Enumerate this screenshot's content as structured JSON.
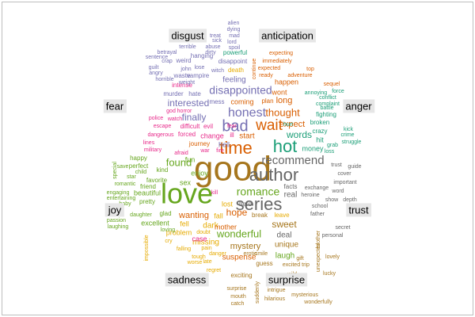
{
  "chart_data": {
    "type": "wordcloud",
    "categories": [
      "anger",
      "anticipation",
      "disgust",
      "fear",
      "joy",
      "sadness",
      "surprise",
      "trust"
    ],
    "colors": {
      "anger": "#1b9e77",
      "anticipation": "#d95f02",
      "disgust": "#7570b3",
      "fear": "#e7298a",
      "joy": "#66a61e",
      "sadness": "#e6ab02",
      "surprise": "#a6761d",
      "trust": "#666666"
    },
    "words": [
      {
        "text": "good",
        "category": "surprise",
        "size": 44
      },
      {
        "text": "love",
        "category": "joy",
        "size": 36
      },
      {
        "text": "series",
        "category": "trust",
        "size": 22
      },
      {
        "text": "author",
        "category": "trust",
        "size": 22
      },
      {
        "text": "time",
        "category": "anticipation",
        "size": 22
      },
      {
        "text": "hot",
        "category": "anger",
        "size": 22
      },
      {
        "text": "bad",
        "category": "disgust",
        "size": 20
      },
      {
        "text": "wait",
        "category": "anticipation",
        "size": 19
      },
      {
        "text": "honest",
        "category": "disgust",
        "size": 16
      },
      {
        "text": "recommend",
        "category": "trust",
        "size": 15
      },
      {
        "text": "romance",
        "category": "joy",
        "size": 14
      },
      {
        "text": "disappointed",
        "category": "disgust",
        "size": 14
      },
      {
        "text": "thought",
        "category": "anticipation",
        "size": 13
      },
      {
        "text": "wonderful",
        "category": "joy",
        "size": 13
      },
      {
        "text": "found",
        "category": "joy",
        "size": 13
      },
      {
        "text": "interested",
        "category": "disgust",
        "size": 12
      },
      {
        "text": "finally",
        "category": "disgust",
        "size": 12
      },
      {
        "text": "words",
        "category": "anger",
        "size": 12
      },
      {
        "text": "hope",
        "category": "anticipation",
        "size": 12
      },
      {
        "text": "sweet",
        "category": "surprise",
        "size": 12
      },
      {
        "text": "mystery",
        "category": "surprise",
        "size": 11
      },
      {
        "text": "wanting",
        "category": "anticipation",
        "size": 11
      },
      {
        "text": "expect",
        "category": "anticipation",
        "size": 11
      },
      {
        "text": "long",
        "category": "anticipation",
        "size": 11
      },
      {
        "text": "unique",
        "category": "surprise",
        "size": 10
      },
      {
        "text": "dark",
        "category": "sadness",
        "size": 10
      },
      {
        "text": "feeling",
        "category": "disgust",
        "size": 10
      },
      {
        "text": "start",
        "category": "anticipation",
        "size": 10
      },
      {
        "text": "real",
        "category": "trust",
        "size": 10
      },
      {
        "text": "suspense",
        "category": "anticipation",
        "size": 10
      },
      {
        "text": "laugh",
        "category": "joy",
        "size": 10
      },
      {
        "text": "deal",
        "category": "trust",
        "size": 10
      },
      {
        "text": "missing",
        "category": "sadness",
        "size": 10
      },
      {
        "text": "problem",
        "category": "sadness",
        "size": 9
      },
      {
        "text": "excellent",
        "category": "joy",
        "size": 9
      },
      {
        "text": "beautiful",
        "category": "joy",
        "size": 9
      },
      {
        "text": "enjoy",
        "category": "joy",
        "size": 9
      },
      {
        "text": "fun",
        "category": "joy",
        "size": 9
      },
      {
        "text": "sex",
        "category": "joy",
        "size": 9
      },
      {
        "text": "happen",
        "category": "anticipation",
        "size": 9
      },
      {
        "text": "coming",
        "category": "anticipation",
        "size": 9
      },
      {
        "text": "change",
        "category": "fear",
        "size": 9
      },
      {
        "text": "hell",
        "category": "disgust",
        "size": 9
      },
      {
        "text": "wont",
        "category": "anticipation",
        "size": 9
      },
      {
        "text": "hit",
        "category": "anger",
        "size": 9
      },
      {
        "text": "money",
        "category": "anger",
        "size": 9
      },
      {
        "text": "fall",
        "category": "sadness",
        "size": 9
      },
      {
        "text": "lost",
        "category": "sadness",
        "size": 9
      },
      {
        "text": "mother",
        "category": "anticipation",
        "size": 9
      },
      {
        "text": "case",
        "category": "fear",
        "size": 9
      },
      {
        "text": "fell",
        "category": "sadness",
        "size": 9
      },
      {
        "text": "favorite",
        "category": "joy",
        "size": 8
      },
      {
        "text": "friend",
        "category": "joy",
        "size": 8
      },
      {
        "text": "happy",
        "category": "joy",
        "size": 8
      },
      {
        "text": "kind",
        "category": "joy",
        "size": 8
      },
      {
        "text": "glad",
        "category": "joy",
        "size": 8
      },
      {
        "text": "pretty",
        "category": "joy",
        "size": 8
      },
      {
        "text": "perfect",
        "category": "joy",
        "size": 8
      },
      {
        "text": "hero",
        "category": "trust",
        "size": 8
      },
      {
        "text": "break",
        "category": "surprise",
        "size": 8
      },
      {
        "text": "leave",
        "category": "sadness",
        "size": 8
      },
      {
        "text": "facts",
        "category": "trust",
        "size": 8
      },
      {
        "text": "ill",
        "category": "fear",
        "size": 8
      },
      {
        "text": "hate",
        "category": "disgust",
        "size": 8
      },
      {
        "text": "mess",
        "category": "disgust",
        "size": 8
      },
      {
        "text": "plan",
        "category": "anticipation",
        "size": 8
      },
      {
        "text": "intense",
        "category": "fear",
        "size": 8
      },
      {
        "text": "murder",
        "category": "disgust",
        "size": 8
      },
      {
        "text": "vampire",
        "category": "disgust",
        "size": 8
      },
      {
        "text": "waste",
        "category": "disgust",
        "size": 8
      },
      {
        "text": "weird",
        "category": "disgust",
        "size": 8
      },
      {
        "text": "disappoint",
        "category": "disgust",
        "size": 8
      },
      {
        "text": "death",
        "category": "sadness",
        "size": 8
      },
      {
        "text": "powerful",
        "category": "anger",
        "size": 8
      },
      {
        "text": "hanging",
        "category": "disgust",
        "size": 8
      },
      {
        "text": "journey",
        "category": "anticipation",
        "size": 8
      },
      {
        "text": "difficult",
        "category": "fear",
        "size": 8
      },
      {
        "text": "evil",
        "category": "fear",
        "size": 8
      },
      {
        "text": "forced",
        "category": "fear",
        "size": 8
      },
      {
        "text": "crazy",
        "category": "anger",
        "size": 8
      },
      {
        "text": "broken",
        "category": "anger",
        "size": 8
      },
      {
        "text": "fighting",
        "category": "anger",
        "size": 8
      },
      {
        "text": "grab",
        "category": "anger",
        "size": 7
      },
      {
        "text": "loss",
        "category": "anger",
        "size": 7
      },
      {
        "text": "lines",
        "category": "fear",
        "size": 7
      },
      {
        "text": "war",
        "category": "fear",
        "size": 7
      },
      {
        "text": "fire",
        "category": "fear",
        "size": 7
      },
      {
        "text": "afraid",
        "category": "fear",
        "size": 7
      },
      {
        "text": "military",
        "category": "fear",
        "size": 7
      },
      {
        "text": "escape",
        "category": "fear",
        "size": 7
      },
      {
        "text": "dangerous",
        "category": "fear",
        "size": 7
      },
      {
        "text": "police",
        "category": "fear",
        "size": 7
      },
      {
        "text": "watch",
        "category": "fear",
        "size": 7
      },
      {
        "text": "god",
        "category": "fear",
        "size": 7
      },
      {
        "text": "horror",
        "category": "fear",
        "size": 7
      },
      {
        "text": "kill",
        "category": "fear",
        "size": 7
      },
      {
        "text": "fear",
        "category": "fear",
        "size": 7
      },
      {
        "text": "exchange",
        "category": "trust",
        "size": 7
      },
      {
        "text": "heroine",
        "category": "trust",
        "size": 7
      },
      {
        "text": "word",
        "category": "trust",
        "size": 7
      },
      {
        "text": "show",
        "category": "trust",
        "size": 7
      },
      {
        "text": "depth",
        "category": "trust",
        "size": 7
      },
      {
        "text": "school",
        "category": "trust",
        "size": 7
      },
      {
        "text": "father",
        "category": "trust",
        "size": 7
      },
      {
        "text": "personal",
        "category": "trust",
        "size": 7
      },
      {
        "text": "important",
        "category": "trust",
        "size": 7
      },
      {
        "text": "cover",
        "category": "trust",
        "size": 7
      },
      {
        "text": "guide",
        "category": "trust",
        "size": 7
      },
      {
        "text": "trust",
        "category": "trust",
        "size": 7
      },
      {
        "text": "secret",
        "category": "trust",
        "size": 7
      },
      {
        "text": "struggle",
        "category": "anger",
        "size": 7
      },
      {
        "text": "kick",
        "category": "anger",
        "size": 7
      },
      {
        "text": "crime",
        "category": "anger",
        "size": 7
      },
      {
        "text": "battle",
        "category": "anger",
        "size": 7
      },
      {
        "text": "hurt",
        "category": "anger",
        "size": 7
      },
      {
        "text": "annoying",
        "category": "anger",
        "size": 7
      },
      {
        "text": "conflict",
        "category": "anger",
        "size": 7
      },
      {
        "text": "complaint",
        "category": "anger",
        "size": 7
      },
      {
        "text": "force",
        "category": "anger",
        "size": 7
      },
      {
        "text": "sequel",
        "category": "anticipation",
        "size": 7
      },
      {
        "text": "top",
        "category": "anticipation",
        "size": 7
      },
      {
        "text": "adventure",
        "category": "anticipation",
        "size": 7
      },
      {
        "text": "ready",
        "category": "anticipation",
        "size": 7
      },
      {
        "text": "expected",
        "category": "anticipation",
        "size": 7
      },
      {
        "text": "immediately",
        "category": "anticipation",
        "size": 7
      },
      {
        "text": "expecting",
        "category": "anticipation",
        "size": 7
      },
      {
        "text": "continue",
        "category": "anticipation",
        "size": 7
      },
      {
        "text": "alien",
        "category": "disgust",
        "size": 7
      },
      {
        "text": "dying",
        "category": "disgust",
        "size": 7
      },
      {
        "text": "mad",
        "category": "disgust",
        "size": 7
      },
      {
        "text": "lord",
        "category": "disgust",
        "size": 7
      },
      {
        "text": "treat",
        "category": "disgust",
        "size": 7
      },
      {
        "text": "sick",
        "category": "disgust",
        "size": 7
      },
      {
        "text": "terrible",
        "category": "disgust",
        "size": 7
      },
      {
        "text": "abuse",
        "category": "disgust",
        "size": 7
      },
      {
        "text": "spoil",
        "category": "disgust",
        "size": 7
      },
      {
        "text": "dirty",
        "category": "disgust",
        "size": 7
      },
      {
        "text": "betrayal",
        "category": "disgust",
        "size": 7
      },
      {
        "text": "sentence",
        "category": "disgust",
        "size": 7
      },
      {
        "text": "crap",
        "category": "disgust",
        "size": 7
      },
      {
        "text": "guilt",
        "category": "disgust",
        "size": 7
      },
      {
        "text": "john",
        "category": "disgust",
        "size": 7
      },
      {
        "text": "lose",
        "category": "disgust",
        "size": 7
      },
      {
        "text": "witch",
        "category": "disgust",
        "size": 7
      },
      {
        "text": "angry",
        "category": "disgust",
        "size": 7
      },
      {
        "text": "horrible",
        "category": "disgust",
        "size": 7
      },
      {
        "text": "weight",
        "category": "disgust",
        "size": 7
      },
      {
        "text": "special",
        "category": "joy",
        "size": 7
      },
      {
        "text": "star",
        "category": "joy",
        "size": 7
      },
      {
        "text": "romantic",
        "category": "joy",
        "size": 7
      },
      {
        "text": "engaging",
        "category": "joy",
        "size": 7
      },
      {
        "text": "entertaining",
        "category": "joy",
        "size": 7
      },
      {
        "text": "daughter",
        "category": "joy",
        "size": 7
      },
      {
        "text": "passion",
        "category": "joy",
        "size": 7
      },
      {
        "text": "laughing",
        "category": "joy",
        "size": 7
      },
      {
        "text": "baby",
        "category": "joy",
        "size": 7
      },
      {
        "text": "child",
        "category": "joy",
        "size": 7
      },
      {
        "text": "save",
        "category": "joy",
        "size": 7
      },
      {
        "text": "loving",
        "category": "joy",
        "size": 7
      },
      {
        "text": "impossible",
        "category": "sadness",
        "size": 7
      },
      {
        "text": "cry",
        "category": "sadness",
        "size": 7
      },
      {
        "text": "falling",
        "category": "sadness",
        "size": 7
      },
      {
        "text": "worse",
        "category": "sadness",
        "size": 7
      },
      {
        "text": "regret",
        "category": "sadness",
        "size": 7
      },
      {
        "text": "pain",
        "category": "sadness",
        "size": 7
      },
      {
        "text": "danger",
        "category": "sadness",
        "size": 7
      },
      {
        "text": "tough",
        "category": "sadness",
        "size": 7
      },
      {
        "text": "late",
        "category": "sadness",
        "size": 7
      },
      {
        "text": "doubt",
        "category": "sadness",
        "size": 7
      },
      {
        "text": "exciting",
        "category": "surprise",
        "size": 8
      },
      {
        "text": "guess",
        "category": "surprise",
        "size": 8
      },
      {
        "text": "erotic",
        "category": "surprise",
        "size": 7
      },
      {
        "text": "smile",
        "category": "surprise",
        "size": 7
      },
      {
        "text": "excited",
        "category": "surprise",
        "size": 7
      },
      {
        "text": "trip",
        "category": "surprise",
        "size": 7
      },
      {
        "text": "gift",
        "category": "surprise",
        "size": 7
      },
      {
        "text": "brother",
        "category": "surprise",
        "size": 7
      },
      {
        "text": "surprise",
        "category": "surprise",
        "size": 7
      },
      {
        "text": "intrigue",
        "category": "surprise",
        "size": 7
      },
      {
        "text": "hilarious",
        "category": "surprise",
        "size": 7
      },
      {
        "text": "mouth",
        "category": "surprise",
        "size": 7
      },
      {
        "text": "catch",
        "category": "surprise",
        "size": 7
      },
      {
        "text": "suddenly",
        "category": "surprise",
        "size": 7
      },
      {
        "text": "mysterious",
        "category": "surprise",
        "size": 7
      },
      {
        "text": "wonderfully",
        "category": "surprise",
        "size": 7
      },
      {
        "text": "lucky",
        "category": "surprise",
        "size": 7
      },
      {
        "text": "lovely",
        "category": "surprise",
        "size": 7
      },
      {
        "text": "unexpected",
        "category": "surprise",
        "size": 7
      },
      {
        "text": "wild",
        "category": "surprise",
        "size": 7
      }
    ]
  }
}
